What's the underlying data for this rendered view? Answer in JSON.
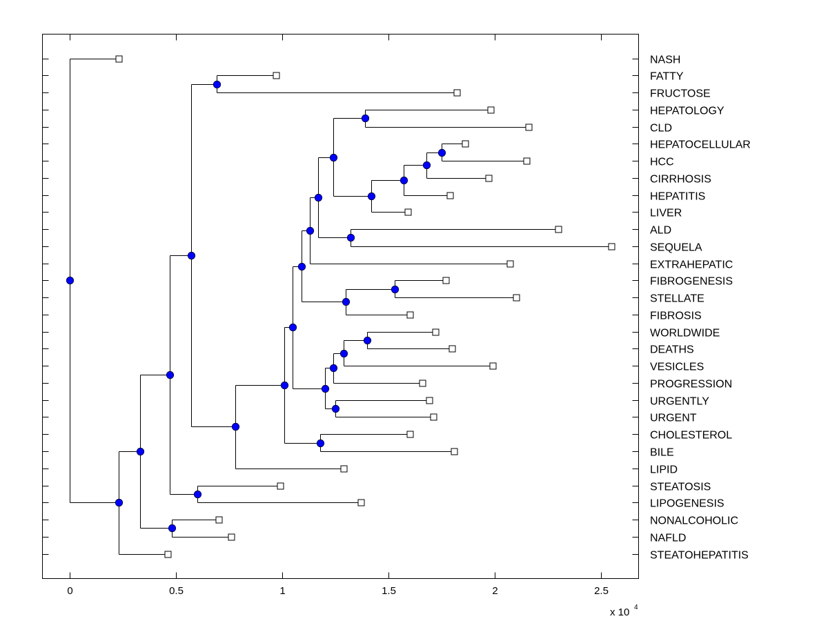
{
  "chart_data": {
    "type": "dendrogram",
    "title": "",
    "xlabel": "",
    "ylabel": "",
    "x_exponent_label": "x 10",
    "x_exponent": "4",
    "xlim": [
      -0.13,
      2.68
    ],
    "x_ticks": [
      0,
      0.5,
      1,
      1.5,
      2,
      2.5
    ],
    "x_tick_labels": [
      "0",
      "0.5",
      "1",
      "1.5",
      "2",
      "2.5"
    ],
    "grid": false,
    "colors": {
      "internal_node": "#0000ff",
      "leaf_node": "#ffffff",
      "line": "#000000"
    },
    "leaves": [
      {
        "label": "NASH",
        "x": 0.23
      },
      {
        "label": "FATTY",
        "x": 0.97
      },
      {
        "label": "FRUCTOSE",
        "x": 1.82
      },
      {
        "label": "HEPATOLOGY",
        "x": 1.98
      },
      {
        "label": "CLD",
        "x": 2.16
      },
      {
        "label": "HEPATOCELLULAR",
        "x": 1.86
      },
      {
        "label": "HCC",
        "x": 2.15
      },
      {
        "label": "CIRRHOSIS",
        "x": 1.97
      },
      {
        "label": "HEPATITIS",
        "x": 1.79
      },
      {
        "label": "LIVER",
        "x": 1.59
      },
      {
        "label": "ALD",
        "x": 2.3
      },
      {
        "label": "SEQUELA",
        "x": 2.55
      },
      {
        "label": "EXTRAHEPATIC",
        "x": 2.07
      },
      {
        "label": "FIBROGENESIS",
        "x": 1.77
      },
      {
        "label": "STELLATE",
        "x": 2.1
      },
      {
        "label": "FIBROSIS",
        "x": 1.6
      },
      {
        "label": "WORLDWIDE",
        "x": 1.72
      },
      {
        "label": "DEATHS",
        "x": 1.8
      },
      {
        "label": "VESICLES",
        "x": 1.99
      },
      {
        "label": "PROGRESSION",
        "x": 1.66
      },
      {
        "label": "URGENTLY",
        "x": 1.69
      },
      {
        "label": "URGENT",
        "x": 1.71
      },
      {
        "label": "CHOLESTEROL",
        "x": 1.6
      },
      {
        "label": "BILE",
        "x": 1.81
      },
      {
        "label": "LIPID",
        "x": 1.29
      },
      {
        "label": "STEATOSIS",
        "x": 0.99
      },
      {
        "label": "LIPOGENESIS",
        "x": 1.37
      },
      {
        "label": "NONALCOHOLIC",
        "x": 0.7
      },
      {
        "label": "NAFLD",
        "x": 0.76
      },
      {
        "label": "STEATOHEPATITIS",
        "x": 0.46
      }
    ],
    "tree": {
      "x": 0,
      "children": [
        {
          "leaf": 0
        },
        {
          "x": 0.23,
          "children": [
            {
              "x": 0.33,
              "children": [
                {
                  "x": 0.47,
                  "children": [
                    {
                      "x": 0.57,
                      "children": [
                        {
                          "x": 0.69,
                          "children": [
                            {
                              "leaf": 1
                            },
                            {
                              "leaf": 2
                            }
                          ]
                        },
                        {
                          "x": 0.78,
                          "children": [
                            {
                              "x": 1.01,
                              "children": [
                                {
                                  "x": 1.05,
                                  "children": [
                                    {
                                      "x": 1.09,
                                      "children": [
                                        {
                                          "x": 1.13,
                                          "children": [
                                            {
                                              "x": 1.17,
                                              "children": [
                                                {
                                                  "x": 1.24,
                                                  "children": [
                                                    {
                                                      "x": 1.39,
                                                      "children": [
                                                        {
                                                          "leaf": 3
                                                        },
                                                        {
                                                          "leaf": 4
                                                        }
                                                      ]
                                                    },
                                                    {
                                                      "x": 1.42,
                                                      "children": [
                                                        {
                                                          "x": 1.57,
                                                          "children": [
                                                            {
                                                              "x": 1.68,
                                                              "children": [
                                                                {
                                                                  "x": 1.75,
                                                                  "children": [
                                                                    {
                                                                      "leaf": 5
                                                                    },
                                                                    {
                                                                      "leaf": 6
                                                                    }
                                                                  ]
                                                                },
                                                                {
                                                                  "leaf": 7
                                                                }
                                                              ]
                                                            },
                                                            {
                                                              "leaf": 8
                                                            }
                                                          ]
                                                        },
                                                        {
                                                          "leaf": 9
                                                        }
                                                      ]
                                                    }
                                                  ]
                                                },
                                                {
                                                  "x": 1.32,
                                                  "children": [
                                                    {
                                                      "leaf": 10
                                                    },
                                                    {
                                                      "leaf": 11
                                                    }
                                                  ]
                                                }
                                              ]
                                            },
                                            {
                                              "leaf": 12
                                            }
                                          ]
                                        },
                                        {
                                          "x": 1.3,
                                          "children": [
                                            {
                                              "x": 1.53,
                                              "children": [
                                                {
                                                  "leaf": 13
                                                },
                                                {
                                                  "leaf": 14
                                                }
                                              ]
                                            },
                                            {
                                              "leaf": 15
                                            }
                                          ]
                                        }
                                      ]
                                    },
                                    {
                                      "x": 1.2,
                                      "children": [
                                        {
                                          "x": 1.24,
                                          "children": [
                                            {
                                              "x": 1.29,
                                              "children": [
                                                {
                                                  "x": 1.4,
                                                  "children": [
                                                    {
                                                      "leaf": 16
                                                    },
                                                    {
                                                      "leaf": 17
                                                    }
                                                  ]
                                                },
                                                {
                                                  "leaf": 18
                                                }
                                              ]
                                            },
                                            {
                                              "leaf": 19
                                            }
                                          ]
                                        },
                                        {
                                          "x": 1.25,
                                          "children": [
                                            {
                                              "leaf": 20
                                            },
                                            {
                                              "leaf": 21
                                            }
                                          ]
                                        }
                                      ]
                                    }
                                  ]
                                },
                                {
                                  "x": 1.18,
                                  "children": [
                                    {
                                      "leaf": 22
                                    },
                                    {
                                      "leaf": 23
                                    }
                                  ]
                                }
                              ]
                            },
                            {
                              "leaf": 24
                            }
                          ]
                        }
                      ]
                    },
                    {
                      "x": 0.6,
                      "children": [
                        {
                          "leaf": 25
                        },
                        {
                          "leaf": 26
                        }
                      ]
                    }
                  ]
                },
                {
                  "x": 0.48,
                  "children": [
                    {
                      "leaf": 27
                    },
                    {
                      "leaf": 28
                    }
                  ]
                }
              ]
            },
            {
              "leaf": 29
            }
          ]
        }
      ]
    }
  }
}
